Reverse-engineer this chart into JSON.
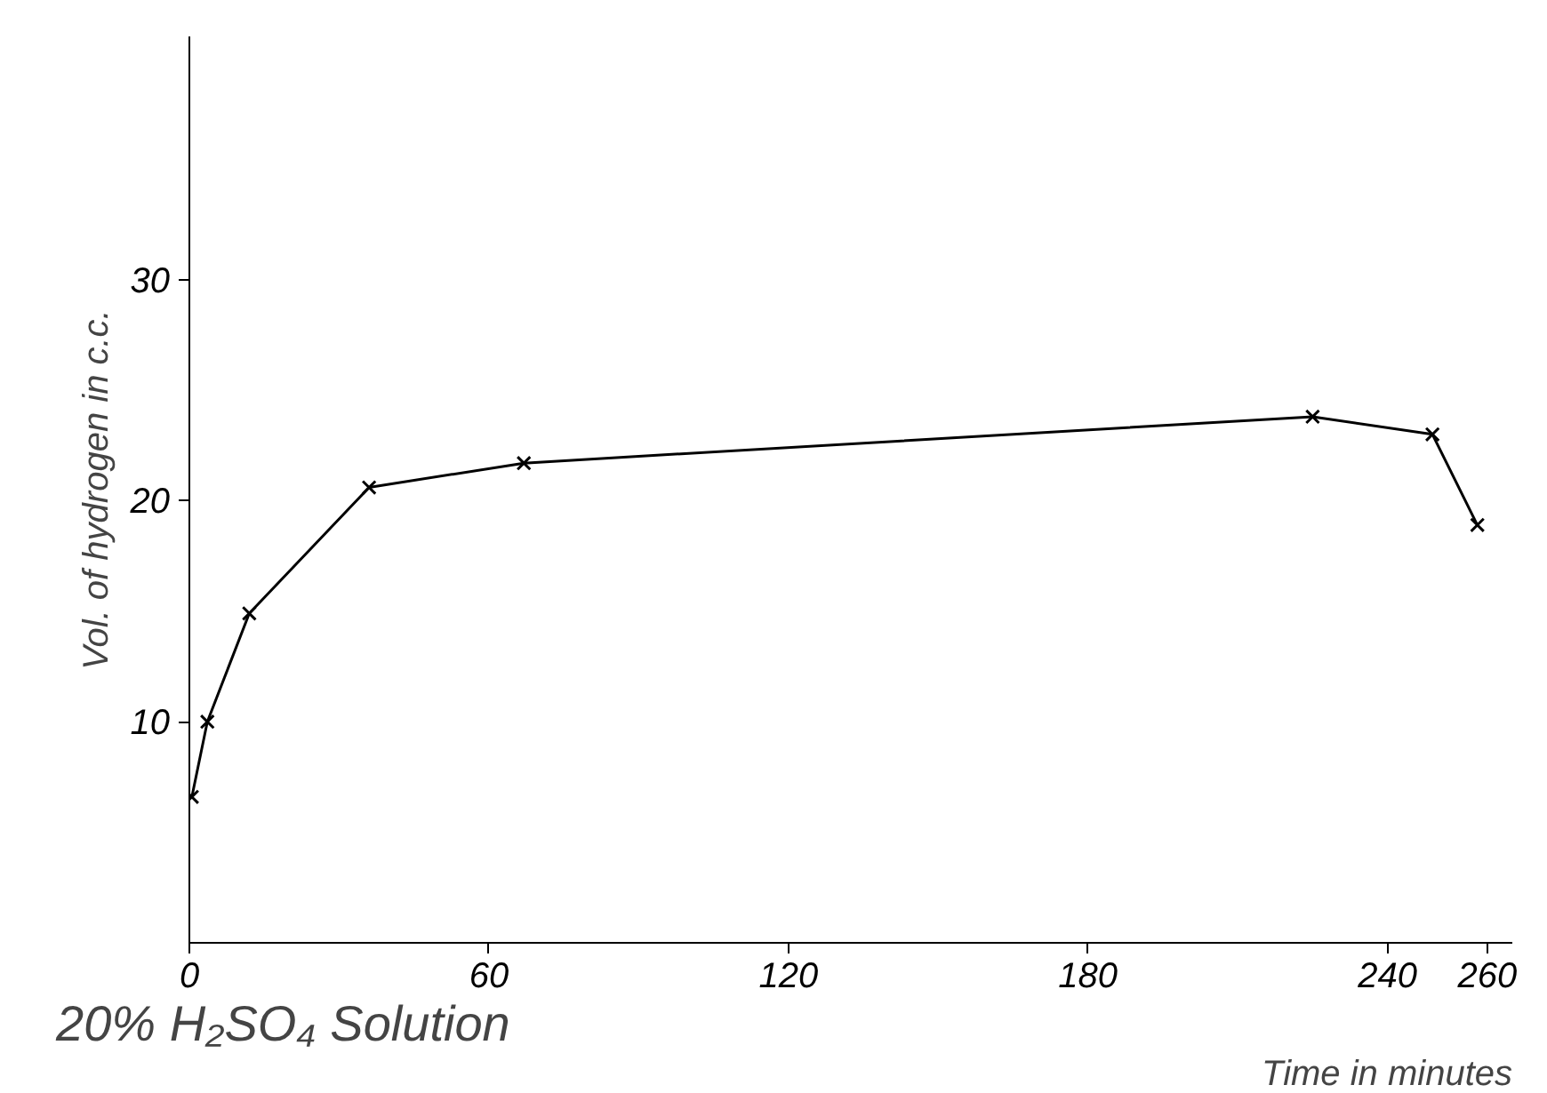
{
  "chart_data": {
    "type": "line",
    "xlabel": "Time in minutes",
    "ylabel": "Vol. of hydrogen in c.c.",
    "annotations": [
      "20% H₂SO₄ Solution"
    ],
    "x": [
      0.5,
      3.6,
      12,
      36,
      67,
      225,
      249,
      258
    ],
    "values": [
      6.6,
      10,
      14.9,
      20.6,
      21.7,
      23.8,
      23,
      18.9
    ],
    "color": "#000000",
    "marker": "cross",
    "grid": false,
    "xlim": [
      0,
      265
    ],
    "ylim": [
      0,
      41
    ],
    "xticks": [
      0,
      60,
      120,
      180,
      240,
      260
    ],
    "yticks": [
      10,
      20,
      30
    ]
  }
}
